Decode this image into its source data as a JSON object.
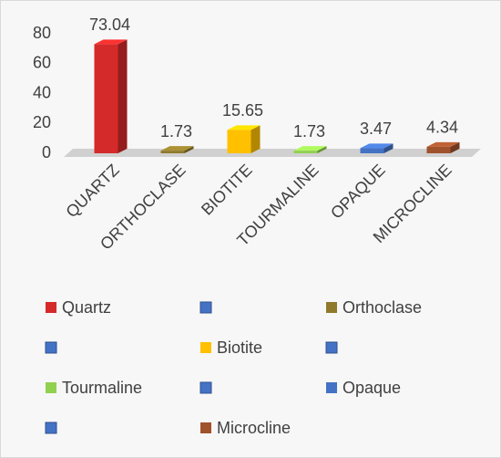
{
  "chart_data": {
    "type": "bar3d",
    "categories": [
      "QUARTZ",
      "ORTHOCLASE",
      "BIOTITE",
      "TOURMALINE",
      "OPAQUE",
      "MICROCLINE"
    ],
    "values": [
      73.04,
      1.73,
      15.65,
      1.73,
      3.47,
      4.34
    ],
    "colors": [
      "#d42a2a",
      "#8f7a2b",
      "#ffc000",
      "#92d050",
      "#4472c4",
      "#a0522d"
    ],
    "ylim": [
      0,
      80
    ],
    "yticks": [
      0,
      20,
      40,
      60,
      80
    ],
    "legend": [
      {
        "name": "Quartz",
        "color": "#d42a2a"
      },
      {
        "name": null,
        "color": "#4472c4"
      },
      {
        "name": "Orthoclase",
        "color": "#8f7a2b"
      },
      {
        "name": null,
        "color": "#4472c4"
      },
      {
        "name": "Biotite",
        "color": "#ffc000"
      },
      {
        "name": null,
        "color": "#4472c4"
      },
      {
        "name": "Tourmaline",
        "color": "#92d050"
      },
      {
        "name": null,
        "color": "#4472c4"
      },
      {
        "name": "Opaque",
        "color": "#4472c4"
      },
      {
        "name": null,
        "color": "#4472c4"
      },
      {
        "name": "Microcline",
        "color": "#a0522d"
      }
    ]
  }
}
